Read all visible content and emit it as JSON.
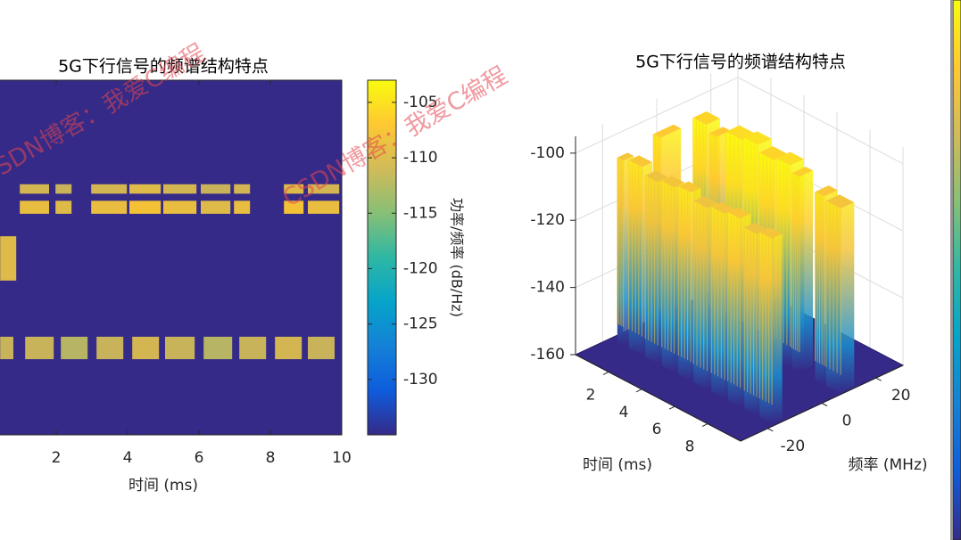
{
  "watermark": "CSDN博客：我爱C编程",
  "chart_data": [
    {
      "type": "heatmap",
      "title": "5G下行信号的频谱结构特点",
      "xlabel": "时间 (ms)",
      "colorbar_label": "功率/频率 (dB/Hz)",
      "colormap": "parula",
      "xlim": [
        0,
        10
      ],
      "ylim": [
        -30,
        30
      ],
      "xticks": [
        2,
        4,
        6,
        8,
        10
      ],
      "clim": [
        -135,
        -103
      ],
      "cticks": [
        -105,
        -110,
        -115,
        -120,
        -125,
        -130
      ],
      "background_value": -135,
      "blocks": [
        {
          "x0": 0.98,
          "x1": 1.8,
          "y0": 10.8,
          "y1": 12.4,
          "value": -110
        },
        {
          "x0": 1.98,
          "x1": 2.43,
          "y0": 10.8,
          "y1": 12.4,
          "value": -111
        },
        {
          "x0": 2.98,
          "x1": 3.98,
          "y0": 10.8,
          "y1": 12.4,
          "value": -110
        },
        {
          "x0": 4.05,
          "x1": 4.93,
          "y0": 10.8,
          "y1": 12.4,
          "value": -109
        },
        {
          "x0": 5.0,
          "x1": 5.93,
          "y0": 10.8,
          "y1": 12.4,
          "value": -110
        },
        {
          "x0": 6.05,
          "x1": 6.88,
          "y0": 10.8,
          "y1": 12.4,
          "value": -111
        },
        {
          "x0": 6.98,
          "x1": 7.43,
          "y0": 10.8,
          "y1": 12.4,
          "value": -110
        },
        {
          "x0": 8.38,
          "x1": 8.93,
          "y0": 10.8,
          "y1": 12.4,
          "value": -109
        },
        {
          "x0": 9.05,
          "x1": 9.93,
          "y0": 10.8,
          "y1": 12.4,
          "value": -110
        },
        {
          "x0": 0.98,
          "x1": 1.8,
          "y0": 7.4,
          "y1": 9.6,
          "value": -108
        },
        {
          "x0": 1.98,
          "x1": 2.43,
          "y0": 7.4,
          "y1": 9.6,
          "value": -109
        },
        {
          "x0": 2.98,
          "x1": 3.98,
          "y0": 7.4,
          "y1": 9.6,
          "value": -108
        },
        {
          "x0": 4.05,
          "x1": 4.93,
          "y0": 7.4,
          "y1": 9.6,
          "value": -107
        },
        {
          "x0": 5.0,
          "x1": 5.93,
          "y0": 7.4,
          "y1": 9.6,
          "value": -108
        },
        {
          "x0": 6.05,
          "x1": 6.88,
          "y0": 7.4,
          "y1": 9.6,
          "value": -109
        },
        {
          "x0": 6.98,
          "x1": 7.43,
          "y0": 7.4,
          "y1": 9.6,
          "value": -108
        },
        {
          "x0": 8.38,
          "x1": 8.93,
          "y0": 7.4,
          "y1": 9.6,
          "value": -107
        },
        {
          "x0": 9.05,
          "x1": 9.93,
          "y0": 7.4,
          "y1": 9.6,
          "value": -108
        },
        {
          "x0": 0.43,
          "x1": 0.88,
          "y0": -3.9,
          "y1": 3.6,
          "value": -109
        },
        {
          "x0": 0.43,
          "x1": 0.8,
          "y0": -17.2,
          "y1": -13.4,
          "value": -111
        },
        {
          "x0": 1.13,
          "x1": 1.93,
          "y0": -17.2,
          "y1": -13.4,
          "value": -111
        },
        {
          "x0": 2.13,
          "x1": 2.88,
          "y0": -17.2,
          "y1": -13.4,
          "value": -112
        },
        {
          "x0": 3.13,
          "x1": 3.88,
          "y0": -17.2,
          "y1": -13.4,
          "value": -111
        },
        {
          "x0": 4.13,
          "x1": 4.88,
          "y0": -17.2,
          "y1": -13.4,
          "value": -110
        },
        {
          "x0": 5.05,
          "x1": 5.88,
          "y0": -17.2,
          "y1": -13.4,
          "value": -111
        },
        {
          "x0": 6.13,
          "x1": 6.93,
          "y0": -17.2,
          "y1": -13.4,
          "value": -112
        },
        {
          "x0": 7.13,
          "x1": 7.88,
          "y0": -17.2,
          "y1": -13.4,
          "value": -111
        },
        {
          "x0": 8.13,
          "x1": 8.88,
          "y0": -17.2,
          "y1": -13.4,
          "value": -110
        },
        {
          "x0": 9.05,
          "x1": 9.8,
          "y0": -17.2,
          "y1": -13.4,
          "value": -111
        }
      ]
    },
    {
      "type": "surface3d",
      "title": "5G下行信号的频谱结构特点",
      "xlabel": "时间 (ms)",
      "ylabel": "频率 (MHz)",
      "colormap": "parula",
      "xlim": [
        0,
        10
      ],
      "ylim": [
        -30,
        30
      ],
      "zlim": [
        -160,
        -95
      ],
      "xticks": [
        2,
        4,
        6,
        8
      ],
      "yticks": [
        -20,
        0,
        20
      ],
      "zticks": [
        -100,
        -120,
        -140,
        -160
      ],
      "blocks": [
        {
          "t": [
            0.98,
            1.8
          ],
          "f": [
            7.4,
            12.4
          ],
          "z": -101
        },
        {
          "t": [
            1.98,
            2.43
          ],
          "f": [
            7.4,
            12.4
          ],
          "z": -103
        },
        {
          "t": [
            2.98,
            3.98
          ],
          "f": [
            7.4,
            12.4
          ],
          "z": -100
        },
        {
          "t": [
            4.05,
            4.93
          ],
          "f": [
            7.4,
            12.4
          ],
          "z": -99
        },
        {
          "t": [
            5.0,
            5.93
          ],
          "f": [
            7.4,
            12.4
          ],
          "z": -101
        },
        {
          "t": [
            6.05,
            6.88
          ],
          "f": [
            7.4,
            12.4
          ],
          "z": -100
        },
        {
          "t": [
            6.98,
            7.43
          ],
          "f": [
            7.4,
            12.4
          ],
          "z": -102
        },
        {
          "t": [
            8.38,
            8.93
          ],
          "f": [
            7.4,
            12.4
          ],
          "z": -104
        },
        {
          "t": [
            9.05,
            9.93
          ],
          "f": [
            7.4,
            12.4
          ],
          "z": -105
        },
        {
          "t": [
            0.43,
            0.88
          ],
          "f": [
            -3.9,
            3.6
          ],
          "z": -103
        },
        {
          "t": [
            0.43,
            0.8
          ],
          "f": [
            -17.2,
            -13.4
          ],
          "z": -105
        },
        {
          "t": [
            1.13,
            1.93
          ],
          "f": [
            -17.2,
            -13.4
          ],
          "z": -104
        },
        {
          "t": [
            2.13,
            2.88
          ],
          "f": [
            -17.2,
            -13.4
          ],
          "z": -106
        },
        {
          "t": [
            3.13,
            3.88
          ],
          "f": [
            -17.2,
            -13.4
          ],
          "z": -105
        },
        {
          "t": [
            4.13,
            4.88
          ],
          "f": [
            -17.2,
            -13.4
          ],
          "z": -104
        },
        {
          "t": [
            5.05,
            5.88
          ],
          "f": [
            -17.2,
            -13.4
          ],
          "z": -106
        },
        {
          "t": [
            6.13,
            6.93
          ],
          "f": [
            -17.2,
            -13.4
          ],
          "z": -105
        },
        {
          "t": [
            7.13,
            7.88
          ],
          "f": [
            -17.2,
            -13.4
          ],
          "z": -104
        },
        {
          "t": [
            8.13,
            8.88
          ],
          "f": [
            -17.2,
            -13.4
          ],
          "z": -106
        },
        {
          "t": [
            9.05,
            9.8
          ],
          "f": [
            -17.2,
            -13.4
          ],
          "z": -105
        }
      ]
    }
  ]
}
